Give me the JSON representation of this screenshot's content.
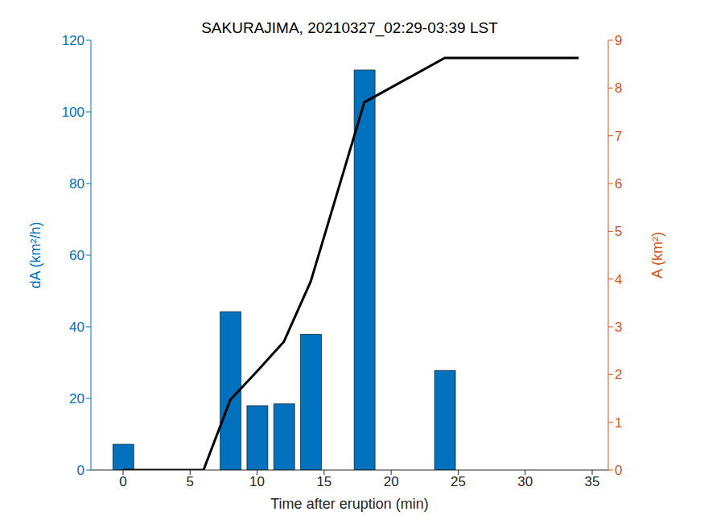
{
  "chart_data": {
    "type": "bar",
    "title": "SAKURAJIMA, 20210327_02:29-03:39 LST",
    "x_label": "Time after eruption (min)",
    "y_label": "dA (km²/h)",
    "y2_label": "A (km²)",
    "x": [
      0,
      2,
      4,
      6,
      8,
      10,
      12,
      14,
      18,
      24,
      26,
      28,
      30,
      32,
      34
    ],
    "series": [
      {
        "type": "bar",
        "color": "#0072bd",
        "values": [
          7.2,
          null,
          null,
          null,
          44.2,
          18,
          18.5,
          37.9,
          111.7,
          27.8,
          null,
          null,
          null,
          null,
          null
        ]
      },
      {
        "type": "line",
        "axis": "y2",
        "color": "#000000",
        "values": [
          0,
          0,
          0,
          0,
          1.47,
          2.07,
          2.69,
          3.95,
          7.7,
          8.63,
          8.63,
          8.63,
          8.63,
          8.63,
          8.63
        ]
      }
    ],
    "xlim": [
      -2.4,
      36.2
    ],
    "xticks": [
      0,
      5,
      10,
      15,
      20,
      25,
      30,
      35
    ],
    "ylim": [
      0,
      120
    ],
    "yticks": [
      0,
      20,
      40,
      60,
      80,
      100,
      120
    ],
    "y2lim": [
      0,
      9
    ],
    "y2ticks": [
      0,
      1,
      2,
      3,
      4,
      5,
      6,
      7,
      8,
      9
    ]
  }
}
